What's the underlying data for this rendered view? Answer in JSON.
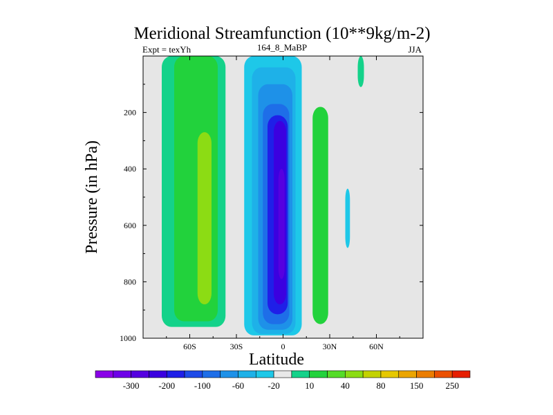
{
  "chart_data": {
    "type": "heatmap",
    "title": "Meridional Streamfunction (10**9kg/m-2)",
    "left_label": "Expt = texYh",
    "center_label": "164_8_MaBP",
    "right_label": "JJA",
    "xlabel": "Latitude",
    "ylabel": "Pressure (in hPa)",
    "x_ticks": [
      "60S",
      "30S",
      "0",
      "30N",
      "60N"
    ],
    "x_tick_values": [
      -60,
      -30,
      0,
      30,
      60
    ],
    "xlim": [
      -90,
      90
    ],
    "y_ticks": [
      "200",
      "400",
      "600",
      "800",
      "1000"
    ],
    "y_tick_values": [
      200,
      400,
      600,
      800,
      1000
    ],
    "ylim": [
      1000,
      0
    ],
    "background_color": "#e6e6e6",
    "contour_levels": [
      -350,
      -300,
      -250,
      -200,
      -150,
      -100,
      -80,
      -60,
      -40,
      -20,
      -10,
      10,
      20,
      40,
      60,
      80,
      100,
      150,
      200,
      250,
      300
    ],
    "colorbar_labels": [
      "-300",
      "-200",
      "-100",
      "-60",
      "-20",
      "10",
      "40",
      "80",
      "150",
      "250"
    ],
    "colorbar_label_after_bin": [
      1,
      3,
      5,
      7,
      9,
      11,
      13,
      15,
      17,
      19
    ],
    "colorbar_colors": [
      "#8a00e8",
      "#6e00e8",
      "#5500e0",
      "#3b00e0",
      "#1f1fe8",
      "#1e4be8",
      "#1e6ee8",
      "#1e91e8",
      "#1eb1e8",
      "#1ec8e8",
      "#e8e8e8",
      "#14d28a",
      "#22d23c",
      "#55dc28",
      "#8cdc14",
      "#c3d200",
      "#e6c800",
      "#eba500",
      "#eb7d00",
      "#eb5000",
      "#e61e00"
    ],
    "regions": [
      {
        "name": "sh-cell-outer",
        "level_color": "#14d28a",
        "lat_min": -78,
        "lat_max": -37,
        "p_top": 0,
        "p_bottom": 960
      },
      {
        "name": "sh-cell-mid",
        "level_color": "#22d23c",
        "lat_min": -70,
        "lat_max": -42,
        "p_top": 0,
        "p_bottom": 940
      },
      {
        "name": "sh-cell-core",
        "level_color": "#8cdc14",
        "lat_min": -55,
        "lat_max": -46,
        "p_top": 270,
        "p_bottom": 880
      },
      {
        "name": "hadley-cell-outer",
        "level_color": "#1ec8e8",
        "lat_min": -25,
        "lat_max": 12,
        "p_top": 0,
        "p_bottom": 990
      },
      {
        "name": "hadley-cell-mid1",
        "level_color": "#1eb1e8",
        "lat_min": -20,
        "lat_max": 8,
        "p_top": 40,
        "p_bottom": 985
      },
      {
        "name": "hadley-cell-mid2",
        "level_color": "#1e91e8",
        "lat_min": -16,
        "lat_max": 6,
        "p_top": 100,
        "p_bottom": 970
      },
      {
        "name": "hadley-cell-mid3",
        "level_color": "#1e6ee8",
        "lat_min": -13,
        "lat_max": 4,
        "p_top": 170,
        "p_bottom": 950
      },
      {
        "name": "hadley-cell-mid4",
        "level_color": "#1f1fe8",
        "lat_min": -10,
        "lat_max": 3,
        "p_top": 210,
        "p_bottom": 915
      },
      {
        "name": "hadley-cell-core",
        "level_color": "#3b00e0",
        "lat_min": -6,
        "lat_max": 2,
        "p_top": 230,
        "p_bottom": 880
      },
      {
        "name": "hadley-cell-center",
        "level_color": "#5500e0",
        "lat_min": -3,
        "lat_max": 1,
        "p_top": 400,
        "p_bottom": 790
      },
      {
        "name": "nh-cell",
        "level_color": "#22d23c",
        "lat_min": 19,
        "lat_max": 29,
        "p_top": 180,
        "p_bottom": 950
      },
      {
        "name": "nh-small-cell",
        "level_color": "#1ec8e8",
        "lat_min": 40,
        "lat_max": 43,
        "p_top": 470,
        "p_bottom": 680
      },
      {
        "name": "nh-top-cell",
        "level_color": "#14d28a",
        "lat_min": 48,
        "lat_max": 52,
        "p_top": 0,
        "p_bottom": 110
      }
    ]
  }
}
